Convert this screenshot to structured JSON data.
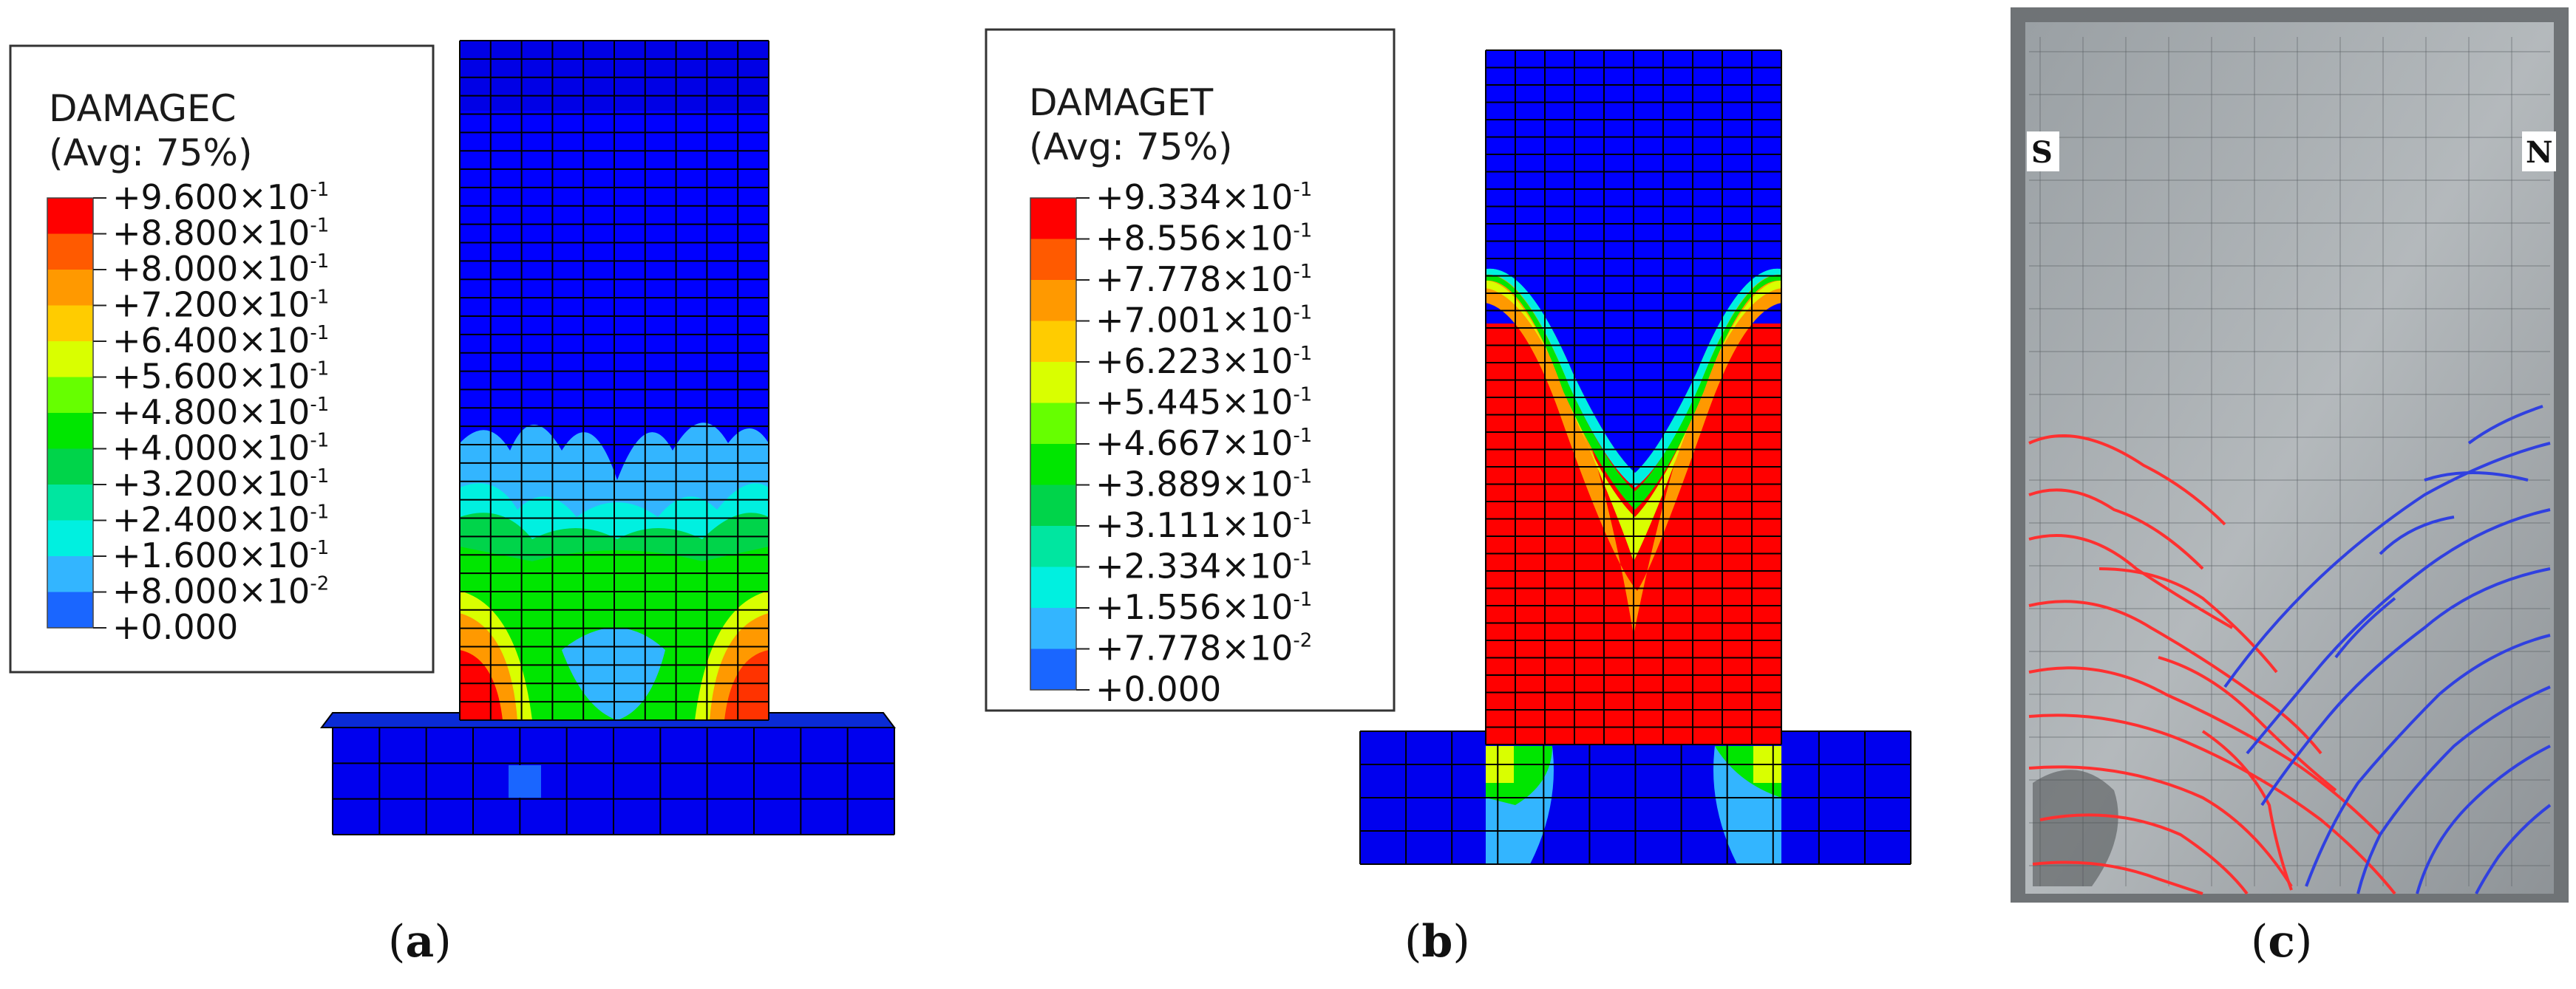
{
  "panels": [
    {
      "id": "a",
      "caption_open": "(",
      "caption_letter": "a",
      "caption_close": ")",
      "legend_title": "DAMAGEC",
      "legend_subtitle": "(Avg: 75%)",
      "legend_values": [
        {
          "mant": "+9.600",
          "exp": "-1"
        },
        {
          "mant": "+8.800",
          "exp": "-1"
        },
        {
          "mant": "+8.000",
          "exp": "-1"
        },
        {
          "mant": "+7.200",
          "exp": "-1"
        },
        {
          "mant": "+6.400",
          "exp": "-1"
        },
        {
          "mant": "+5.600",
          "exp": "-1"
        },
        {
          "mant": "+4.800",
          "exp": "-1"
        },
        {
          "mant": "+4.000",
          "exp": "-1"
        },
        {
          "mant": "+3.200",
          "exp": "-1"
        },
        {
          "mant": "+2.400",
          "exp": "-1"
        },
        {
          "mant": "+1.600",
          "exp": "-1"
        },
        {
          "mant": "+8.000",
          "exp": "-2"
        },
        {
          "mant": "+0.000",
          "exp": ""
        }
      ]
    },
    {
      "id": "b",
      "caption_open": "(",
      "caption_letter": "b",
      "caption_close": ")",
      "legend_title": "DAMAGET",
      "legend_subtitle": "(Avg: 75%)",
      "legend_values": [
        {
          "mant": "+9.334",
          "exp": "-1"
        },
        {
          "mant": "+8.556",
          "exp": "-1"
        },
        {
          "mant": "+7.778",
          "exp": "-1"
        },
        {
          "mant": "+7.001",
          "exp": "-1"
        },
        {
          "mant": "+6.223",
          "exp": "-1"
        },
        {
          "mant": "+5.445",
          "exp": "-1"
        },
        {
          "mant": "+4.667",
          "exp": "-1"
        },
        {
          "mant": "+3.889",
          "exp": "-1"
        },
        {
          "mant": "+3.111",
          "exp": "-1"
        },
        {
          "mant": "+2.334",
          "exp": "-1"
        },
        {
          "mant": "+1.556",
          "exp": "-1"
        },
        {
          "mant": "+7.778",
          "exp": "-2"
        },
        {
          "mant": "+0.000",
          "exp": ""
        }
      ]
    },
    {
      "id": "c",
      "caption_open": "(",
      "caption_letter": "c",
      "caption_close": ")",
      "label_left": "S",
      "label_right": "N"
    }
  ],
  "colors": {
    "contour_scale": [
      "#ff0000",
      "#ff5a00",
      "#ff9900",
      "#ffcc00",
      "#d9ff00",
      "#66ff00",
      "#00e600",
      "#00d44a",
      "#00e6a0",
      "#00f0e0",
      "#33b5ff",
      "#1a66ff",
      "#0000ff"
    ],
    "crack_south": "#ff3030",
    "crack_north": "#3040e0",
    "mesh_line": "#000000"
  }
}
